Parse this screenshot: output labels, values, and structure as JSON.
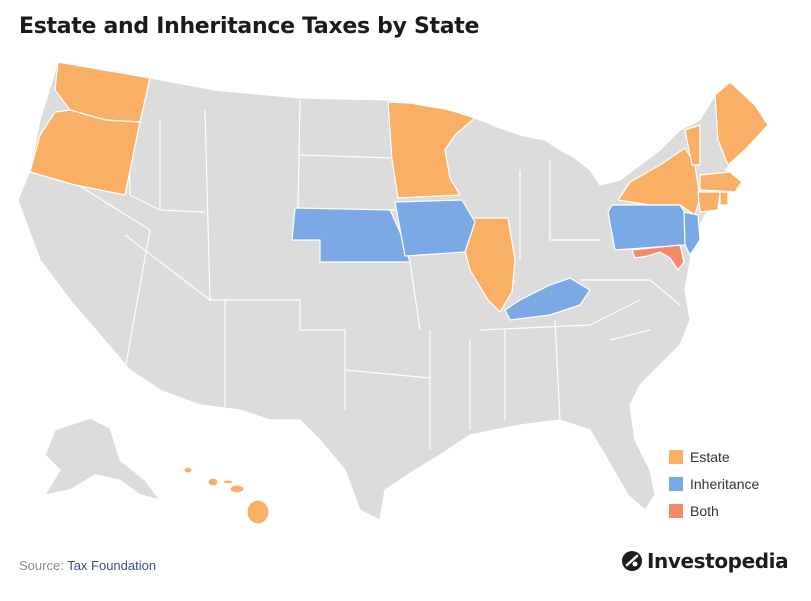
{
  "title": "Estate and Inheritance Taxes by State",
  "legend": [
    {
      "label": "Estate",
      "color": "#f9b066"
    },
    {
      "label": "Inheritance",
      "color": "#7aa9e6"
    },
    {
      "label": "Both",
      "color": "#f28a6c"
    }
  ],
  "colors": {
    "base": "#dcdcdc",
    "estate": "#f9b066",
    "inheritance": "#7aa9e6",
    "both": "#f28a6c"
  },
  "states": {
    "estate": [
      "Washington",
      "Oregon",
      "Minnesota",
      "Illinois",
      "New York",
      "Vermont",
      "Maine",
      "Massachusetts",
      "Connecticut",
      "Rhode Island",
      "Hawaii"
    ],
    "inheritance": [
      "Nebraska",
      "Iowa",
      "Kentucky",
      "Pennsylvania",
      "New Jersey"
    ],
    "both": [
      "Maryland"
    ]
  },
  "source": {
    "prefix": "Source: ",
    "link": "Tax Foundation"
  },
  "brand": {
    "name": "Investopedia",
    "icon": "investopedia-logo-icon"
  }
}
